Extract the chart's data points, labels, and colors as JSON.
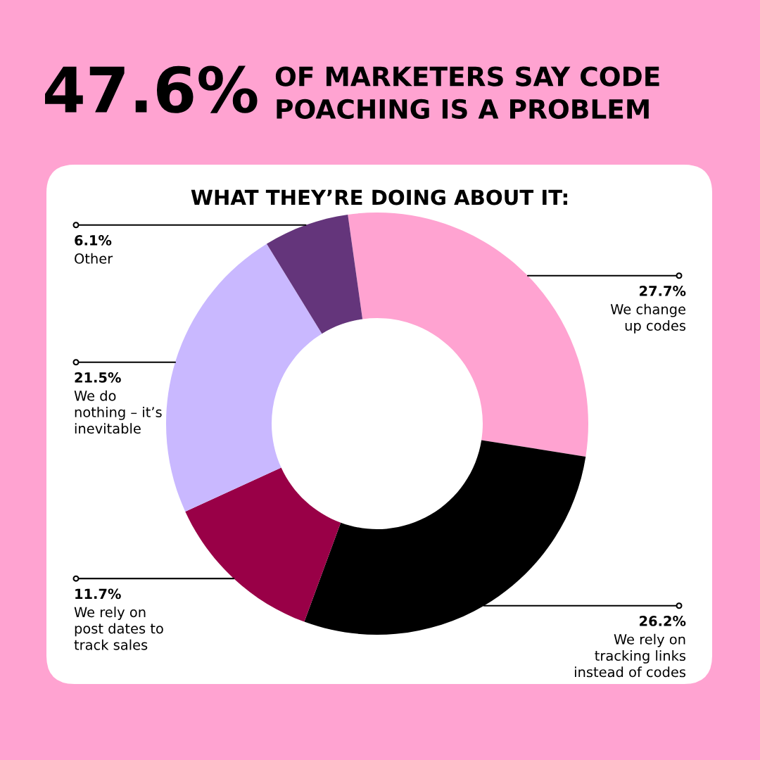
{
  "chart_data": {
    "type": "donut",
    "title": "47.6%",
    "subtitle": "OF MARKETERS SAY CODE\nPOACHING IS A PROBLEM",
    "annotations": [
      "WHAT THEY’RE DOING ABOUT IT:"
    ],
    "categories": [
      "We change\nup codes",
      "We rely on\ntracking links\ninstead of codes",
      "We rely on\npost dates to\ntrack sales",
      "We do\nnothing – it’s\ninevitable",
      "Other"
    ],
    "values": [
      27.7,
      26.2,
      11.7,
      21.5,
      6.1
    ],
    "value_labels": [
      "27.7%",
      "26.2%",
      "11.7%",
      "21.5%",
      "6.1%"
    ],
    "colors": [
      "#ffa3d1",
      "#000000",
      "#990047",
      "#c9b8ff",
      "#64357b"
    ]
  }
}
